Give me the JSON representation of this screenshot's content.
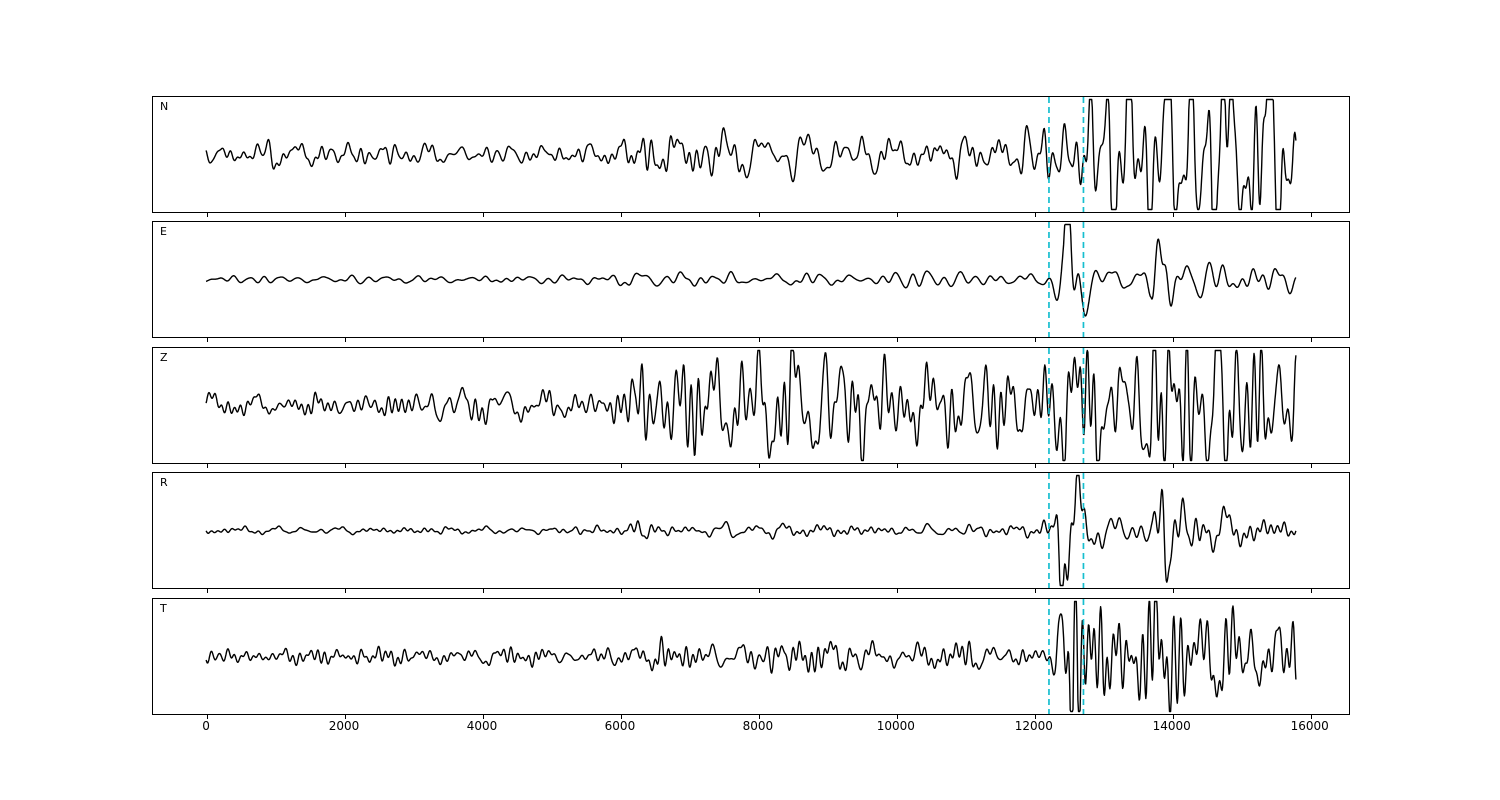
{
  "figure": {
    "background": "#ffffff",
    "trace_color": "#000000",
    "frame_color": "#000000"
  },
  "chart_data": {
    "type": "line",
    "subtype": "seismogram-multipanel",
    "title": "",
    "xlabel": "",
    "ylabel": "",
    "grid": false,
    "legend": null,
    "xlim": [
      -770,
      16570
    ],
    "x_ticks": [
      0,
      2000,
      4000,
      6000,
      8000,
      10000,
      12000,
      14000,
      16000
    ],
    "x_tick_labels": [
      "0",
      "2000",
      "4000",
      "6000",
      "8000",
      "10000",
      "12000",
      "14000",
      "16000"
    ],
    "trace_x_range": [
      0,
      15800
    ],
    "pick_markers": {
      "x_values": [
        12220,
        12720
      ],
      "color": "#17becf",
      "line_style": "dashed"
    },
    "panels": [
      {
        "label": "N",
        "envelope": [
          [
            0,
            0.09
          ],
          [
            3000,
            0.1
          ],
          [
            5900,
            0.1
          ],
          [
            6200,
            0.26
          ],
          [
            7200,
            0.22
          ],
          [
            8500,
            0.17
          ],
          [
            10000,
            0.16
          ],
          [
            11800,
            0.14
          ],
          [
            12250,
            0.32
          ],
          [
            12550,
            0.5
          ],
          [
            12850,
            0.95
          ],
          [
            13400,
            0.8
          ],
          [
            13900,
            0.9
          ],
          [
            14400,
            0.95
          ],
          [
            15000,
            0.8
          ],
          [
            15500,
            0.75
          ],
          [
            15800,
            0.5
          ]
        ]
      },
      {
        "label": "E",
        "envelope": [
          [
            0,
            0.035
          ],
          [
            5900,
            0.04
          ],
          [
            6150,
            0.09
          ],
          [
            6500,
            0.06
          ],
          [
            8000,
            0.065
          ],
          [
            11800,
            0.055
          ],
          [
            12250,
            0.1
          ],
          [
            12430,
            0.3
          ],
          [
            12540,
            0.78
          ],
          [
            12700,
            0.35
          ],
          [
            12950,
            0.16
          ],
          [
            13400,
            0.13
          ],
          [
            13700,
            0.2
          ],
          [
            13880,
            0.95
          ],
          [
            14060,
            0.35
          ],
          [
            14400,
            0.17
          ],
          [
            15000,
            0.16
          ],
          [
            15800,
            0.13
          ]
        ]
      },
      {
        "label": "Z",
        "envelope": [
          [
            0,
            0.13
          ],
          [
            3000,
            0.12
          ],
          [
            5700,
            0.12
          ],
          [
            6100,
            0.2
          ],
          [
            6230,
            0.85
          ],
          [
            6400,
            0.5
          ],
          [
            7000,
            0.4
          ],
          [
            8000,
            0.42
          ],
          [
            9500,
            0.4
          ],
          [
            11000,
            0.36
          ],
          [
            11900,
            0.34
          ],
          [
            12300,
            0.48
          ],
          [
            12750,
            0.68
          ],
          [
            13300,
            0.55
          ],
          [
            13900,
            0.8
          ],
          [
            14400,
            0.62
          ],
          [
            15000,
            0.6
          ],
          [
            15800,
            0.42
          ]
        ]
      },
      {
        "label": "R",
        "envelope": [
          [
            0,
            0.03
          ],
          [
            6000,
            0.035
          ],
          [
            6250,
            0.09
          ],
          [
            6700,
            0.055
          ],
          [
            8000,
            0.06
          ],
          [
            11900,
            0.05
          ],
          [
            12280,
            0.1
          ],
          [
            12460,
            0.72
          ],
          [
            12600,
            0.45
          ],
          [
            12850,
            0.15
          ],
          [
            13300,
            0.1
          ],
          [
            13720,
            0.22
          ],
          [
            13900,
            0.95
          ],
          [
            14080,
            0.3
          ],
          [
            14600,
            0.15
          ],
          [
            15800,
            0.12
          ]
        ]
      },
      {
        "label": "T",
        "envelope": [
          [
            0,
            0.06
          ],
          [
            3000,
            0.065
          ],
          [
            6100,
            0.07
          ],
          [
            6500,
            0.11
          ],
          [
            8000,
            0.12
          ],
          [
            10000,
            0.1
          ],
          [
            11800,
            0.1
          ],
          [
            12300,
            0.16
          ],
          [
            12500,
            0.68
          ],
          [
            12750,
            0.45
          ],
          [
            13200,
            0.33
          ],
          [
            13800,
            0.88
          ],
          [
            14050,
            0.5
          ],
          [
            14500,
            0.35
          ],
          [
            15200,
            0.28
          ],
          [
            15800,
            0.27
          ]
        ]
      }
    ]
  }
}
